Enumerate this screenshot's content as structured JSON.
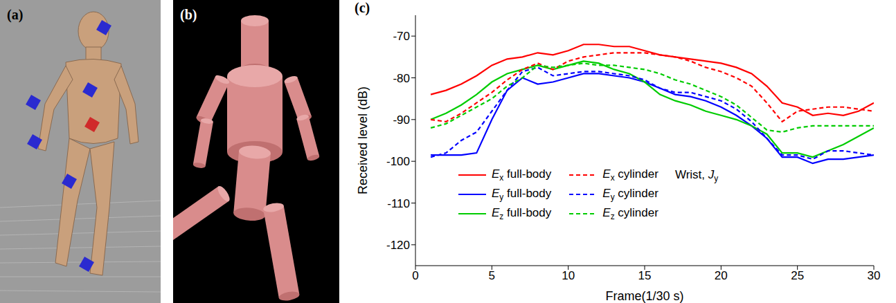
{
  "panels": [
    {
      "label": "(a)"
    },
    {
      "label": "(b)"
    },
    {
      "label": "(c)"
    }
  ],
  "chart_data": {
    "type": "line",
    "x_label": "Frame(1/30 s)",
    "y_label": "Received level (dB)",
    "annotations": [
      "Wrist, Jy"
    ],
    "legend": "bottom",
    "x": [
      1,
      2,
      3,
      4,
      5,
      6,
      7,
      8,
      9,
      10,
      11,
      12,
      13,
      14,
      15,
      16,
      17,
      18,
      19,
      20,
      21,
      22,
      23,
      24,
      25,
      26,
      27,
      28,
      29,
      30
    ],
    "xlim": [
      0,
      30
    ],
    "xticks": [
      0,
      5,
      10,
      15,
      20,
      25,
      30
    ],
    "ylim": [
      -125,
      -65
    ],
    "yticks": [
      -120,
      -110,
      -100,
      -90,
      -80,
      -70
    ],
    "series": [
      {
        "name": "Ex full-body",
        "color": "#ff0000",
        "line_style": "solid",
        "values": [
          -84,
          -83,
          -81.5,
          -79.5,
          -77,
          -75.5,
          -75,
          -74,
          -74.5,
          -73.5,
          -72,
          -72,
          -72.5,
          -72.5,
          -73.5,
          -74.5,
          -75,
          -75.5,
          -76,
          -76.5,
          -77.5,
          -79,
          -82,
          -86,
          -87,
          -89,
          -88.5,
          -89,
          -88,
          -86
        ]
      },
      {
        "name": "Ey full-body",
        "color": "#0000ff",
        "line_style": "solid",
        "values": [
          -98.5,
          -98.5,
          -98.5,
          -98,
          -90,
          -83,
          -80,
          -81.5,
          -81,
          -80,
          -79,
          -79,
          -79.5,
          -80,
          -81,
          -82.5,
          -84,
          -84.5,
          -85.5,
          -87,
          -89,
          -91.5,
          -94.5,
          -99,
          -99,
          -100.5,
          -99.5,
          -99.5,
          -99,
          -98.5
        ]
      },
      {
        "name": "Ez full-body",
        "color": "#00cc00",
        "line_style": "solid",
        "values": [
          -90,
          -88.5,
          -86.5,
          -84,
          -81,
          -79,
          -78,
          -77,
          -78,
          -77,
          -76,
          -76.5,
          -78,
          -79,
          -81,
          -84,
          -85.5,
          -86.5,
          -88,
          -89,
          -90,
          -91.5,
          -93.5,
          -98,
          -98,
          -99,
          -97.5,
          -96,
          -94,
          -92
        ]
      },
      {
        "name": "Ex cylinder",
        "color": "#ff0000",
        "line_style": "dashed",
        "values": [
          -90,
          -90.5,
          -88.5,
          -86,
          -83.5,
          -80.5,
          -78,
          -76.5,
          -78,
          -76,
          -75,
          -74.5,
          -74,
          -74,
          -74,
          -74.5,
          -75,
          -76,
          -77.5,
          -78.5,
          -80,
          -82,
          -86,
          -90.5,
          -88,
          -87.5,
          -87,
          -87,
          -87.5,
          -88
        ]
      },
      {
        "name": "Ey cylinder",
        "color": "#0000ff",
        "line_style": "dashed",
        "values": [
          -99,
          -98,
          -95,
          -93,
          -88,
          -83,
          -78.5,
          -77.5,
          -79.5,
          -79,
          -78.5,
          -78.5,
          -79,
          -79.5,
          -80.5,
          -82.5,
          -83.5,
          -83.5,
          -84.5,
          -85.5,
          -87.5,
          -90.5,
          -94.5,
          -98.5,
          -98.5,
          -99.5,
          -97.5,
          -97.5,
          -98,
          -98.5
        ]
      },
      {
        "name": "Ez cylinder",
        "color": "#00cc00",
        "line_style": "dashed",
        "values": [
          -92,
          -91,
          -89,
          -87,
          -85,
          -82,
          -80,
          -77,
          -77.5,
          -77,
          -76.5,
          -77,
          -77,
          -77.5,
          -78,
          -79,
          -80.5,
          -81.5,
          -83,
          -84.5,
          -86.5,
          -89.5,
          -92.5,
          -93,
          -92,
          -91.5,
          -91.5,
          -91.5,
          -91.5,
          -91.5
        ]
      }
    ]
  }
}
